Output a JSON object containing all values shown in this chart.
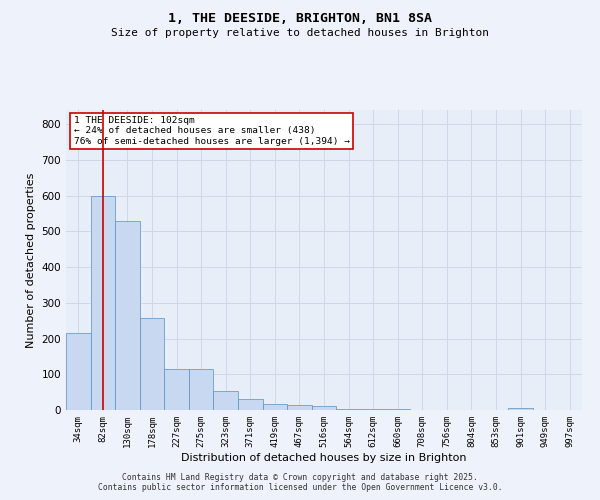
{
  "title": "1, THE DEESIDE, BRIGHTON, BN1 8SA",
  "subtitle": "Size of property relative to detached houses in Brighton",
  "xlabel": "Distribution of detached houses by size in Brighton",
  "ylabel": "Number of detached properties",
  "categories": [
    "34sqm",
    "82sqm",
    "130sqm",
    "178sqm",
    "227sqm",
    "275sqm",
    "323sqm",
    "371sqm",
    "419sqm",
    "467sqm",
    "516sqm",
    "564sqm",
    "612sqm",
    "660sqm",
    "708sqm",
    "756sqm",
    "804sqm",
    "853sqm",
    "901sqm",
    "949sqm",
    "997sqm"
  ],
  "values": [
    215,
    600,
    530,
    258,
    115,
    115,
    52,
    30,
    18,
    14,
    10,
    3,
    3,
    2,
    1,
    1,
    0,
    0,
    5,
    0,
    0
  ],
  "bar_color": "#c8d8f0",
  "bar_edge_color": "#5a8fc0",
  "grid_color": "#d0d8e8",
  "background_color": "#e8eef8",
  "fig_background_color": "#eef2fa",
  "vline_x": 1,
  "vline_color": "#cc0000",
  "annotation_text": "1 THE DEESIDE: 102sqm\n← 24% of detached houses are smaller (438)\n76% of semi-detached houses are larger (1,394) →",
  "annotation_box_color": "#cc0000",
  "ylim": [
    0,
    840
  ],
  "yticks": [
    0,
    100,
    200,
    300,
    400,
    500,
    600,
    700,
    800
  ],
  "footer_line1": "Contains HM Land Registry data © Crown copyright and database right 2025.",
  "footer_line2": "Contains public sector information licensed under the Open Government Licence v3.0."
}
